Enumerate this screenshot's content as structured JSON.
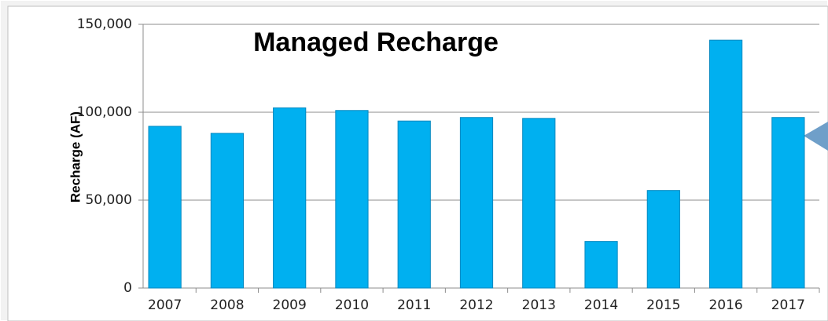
{
  "chart_data": {
    "type": "bar",
    "title": "Managed Recharge",
    "y_label": "Recharge (AF)",
    "categories": [
      "2007",
      "2008",
      "2009",
      "2010",
      "2011",
      "2012",
      "2013",
      "2014",
      "2015",
      "2016",
      "2017"
    ],
    "values": [
      92000,
      88000,
      102500,
      101000,
      95000,
      97000,
      96500,
      26500,
      55500,
      141000,
      97000
    ],
    "color": "#00b0f0",
    "ylim": [
      0,
      150000
    ],
    "yticks": [
      0,
      {
        "value": 50000,
        "label": "50,000"
      },
      {
        "value": 100000,
        "label": "100,000"
      },
      {
        "value": 150000,
        "label": "150,000"
      }
    ],
    "grid": true
  }
}
